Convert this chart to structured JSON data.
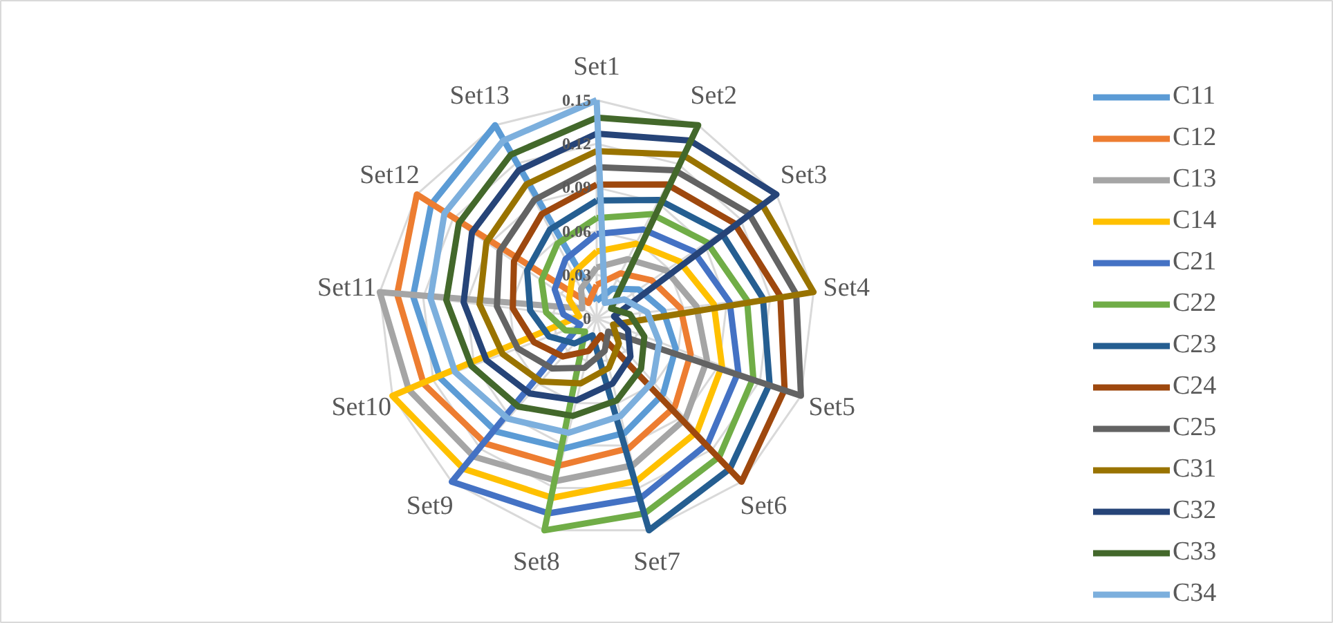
{
  "chart_data": {
    "type": "radar",
    "categories": [
      "Set1",
      "Set2",
      "Set3",
      "Set4",
      "Set5",
      "Set6",
      "Set7",
      "Set8",
      "Set9",
      "Set10",
      "Set11",
      "Set12",
      "Set13"
    ],
    "ylim": [
      0,
      0.15
    ],
    "yticks": [
      0,
      0.03,
      0.06,
      0.09,
      0.12,
      0.15
    ],
    "grid": true,
    "legend": "right",
    "line_style": "solid",
    "marker": "none",
    "series": [
      {
        "name": "C11",
        "color": "#5b9bd5",
        "values": [
          0.012,
          0.023,
          0.035,
          0.046,
          0.058,
          0.069,
          0.081,
          0.092,
          0.104,
          0.115,
          0.127,
          0.138,
          0.15
        ]
      },
      {
        "name": "C12",
        "color": "#ed7d31",
        "values": [
          0.023,
          0.035,
          0.046,
          0.058,
          0.069,
          0.081,
          0.092,
          0.104,
          0.115,
          0.127,
          0.138,
          0.15,
          0.012
        ]
      },
      {
        "name": "C13",
        "color": "#a5a5a5",
        "values": [
          0.035,
          0.046,
          0.058,
          0.069,
          0.081,
          0.092,
          0.104,
          0.115,
          0.127,
          0.138,
          0.15,
          0.012,
          0.023
        ]
      },
      {
        "name": "C14",
        "color": "#ffc000",
        "values": [
          0.046,
          0.058,
          0.069,
          0.081,
          0.092,
          0.104,
          0.115,
          0.127,
          0.138,
          0.15,
          0.012,
          0.023,
          0.035
        ]
      },
      {
        "name": "C21",
        "color": "#4472c4",
        "values": [
          0.058,
          0.069,
          0.081,
          0.092,
          0.104,
          0.115,
          0.127,
          0.138,
          0.15,
          0.012,
          0.023,
          0.035,
          0.046
        ]
      },
      {
        "name": "C22",
        "color": "#70ad47",
        "values": [
          0.069,
          0.081,
          0.092,
          0.104,
          0.115,
          0.127,
          0.138,
          0.15,
          0.012,
          0.023,
          0.035,
          0.046,
          0.058
        ]
      },
      {
        "name": "C23",
        "color": "#255e91",
        "values": [
          0.081,
          0.092,
          0.104,
          0.115,
          0.127,
          0.138,
          0.15,
          0.012,
          0.023,
          0.035,
          0.046,
          0.058,
          0.069
        ]
      },
      {
        "name": "C24",
        "color": "#9e480e",
        "values": [
          0.092,
          0.104,
          0.115,
          0.127,
          0.138,
          0.15,
          0.012,
          0.023,
          0.035,
          0.046,
          0.058,
          0.069,
          0.081
        ]
      },
      {
        "name": "C25",
        "color": "#636363",
        "values": [
          0.104,
          0.115,
          0.127,
          0.138,
          0.15,
          0.012,
          0.023,
          0.035,
          0.046,
          0.058,
          0.069,
          0.081,
          0.092
        ]
      },
      {
        "name": "C31",
        "color": "#997300",
        "values": [
          0.115,
          0.127,
          0.138,
          0.15,
          0.012,
          0.023,
          0.035,
          0.046,
          0.058,
          0.069,
          0.081,
          0.092,
          0.104
        ]
      },
      {
        "name": "C32",
        "color": "#264478",
        "values": [
          0.127,
          0.138,
          0.15,
          0.012,
          0.023,
          0.035,
          0.046,
          0.058,
          0.069,
          0.081,
          0.092,
          0.104,
          0.115
        ]
      },
      {
        "name": "C33",
        "color": "#43682b",
        "values": [
          0.138,
          0.15,
          0.012,
          0.023,
          0.035,
          0.046,
          0.058,
          0.069,
          0.081,
          0.092,
          0.104,
          0.115,
          0.127
        ]
      },
      {
        "name": "C34",
        "color": "#7cafdd",
        "values": [
          0.15,
          0.012,
          0.023,
          0.035,
          0.046,
          0.058,
          0.069,
          0.081,
          0.092,
          0.104,
          0.115,
          0.127,
          0.138
        ]
      }
    ]
  }
}
